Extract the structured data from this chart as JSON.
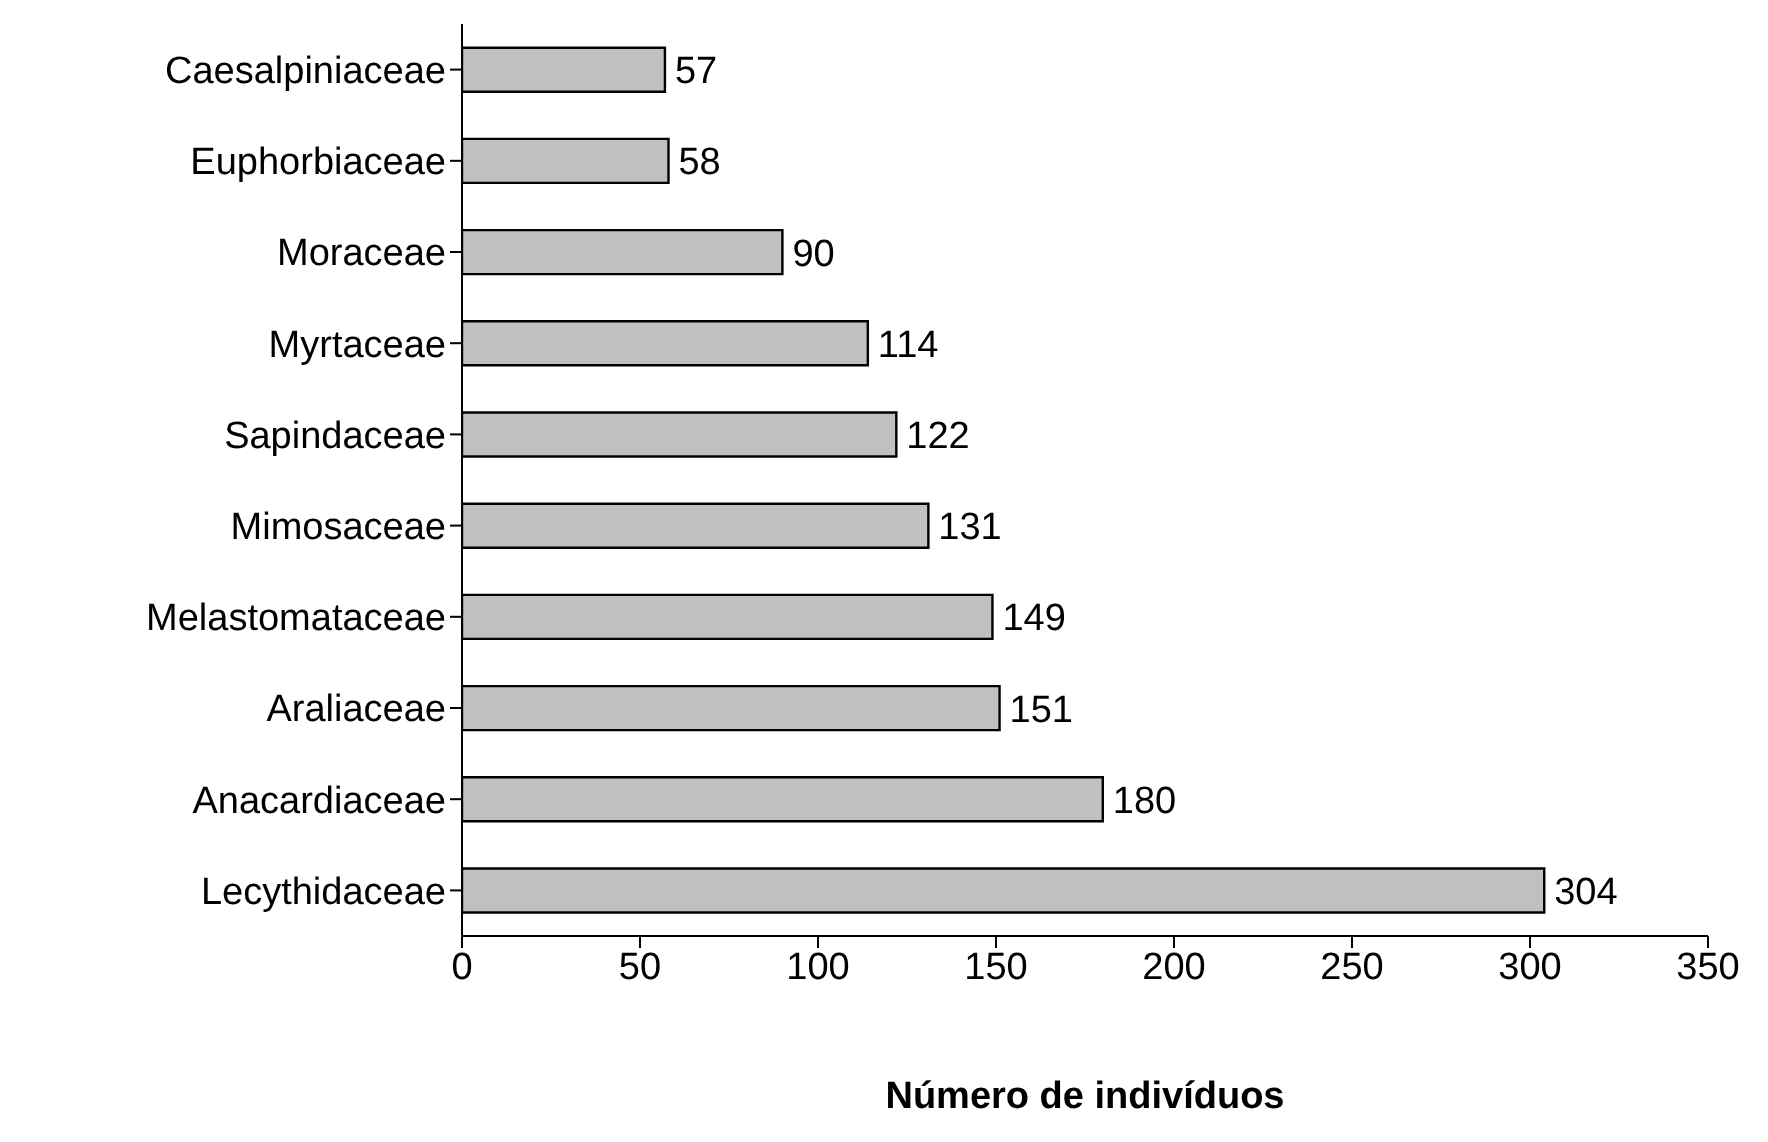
{
  "chart_data": {
    "type": "bar",
    "orientation": "horizontal",
    "xlabel": "Número de indivíduos",
    "categories": [
      "Caesalpiniaceae",
      "Euphorbiaceae",
      "Moraceae",
      "Myrtaceae",
      "Sapindaceae",
      "Mimosaceae",
      "Melastomataceae",
      "Araliaceae",
      "Anacardiaceae",
      "Lecythidaceae"
    ],
    "values": [
      57,
      58,
      90,
      114,
      122,
      131,
      149,
      151,
      180,
      304
    ],
    "color": "#c0c0c0",
    "xlim": [
      0,
      350
    ],
    "xticks": [
      0,
      50,
      100,
      150,
      200,
      250,
      300,
      350
    ],
    "data_labels": true,
    "grid": false,
    "legend": false
  }
}
